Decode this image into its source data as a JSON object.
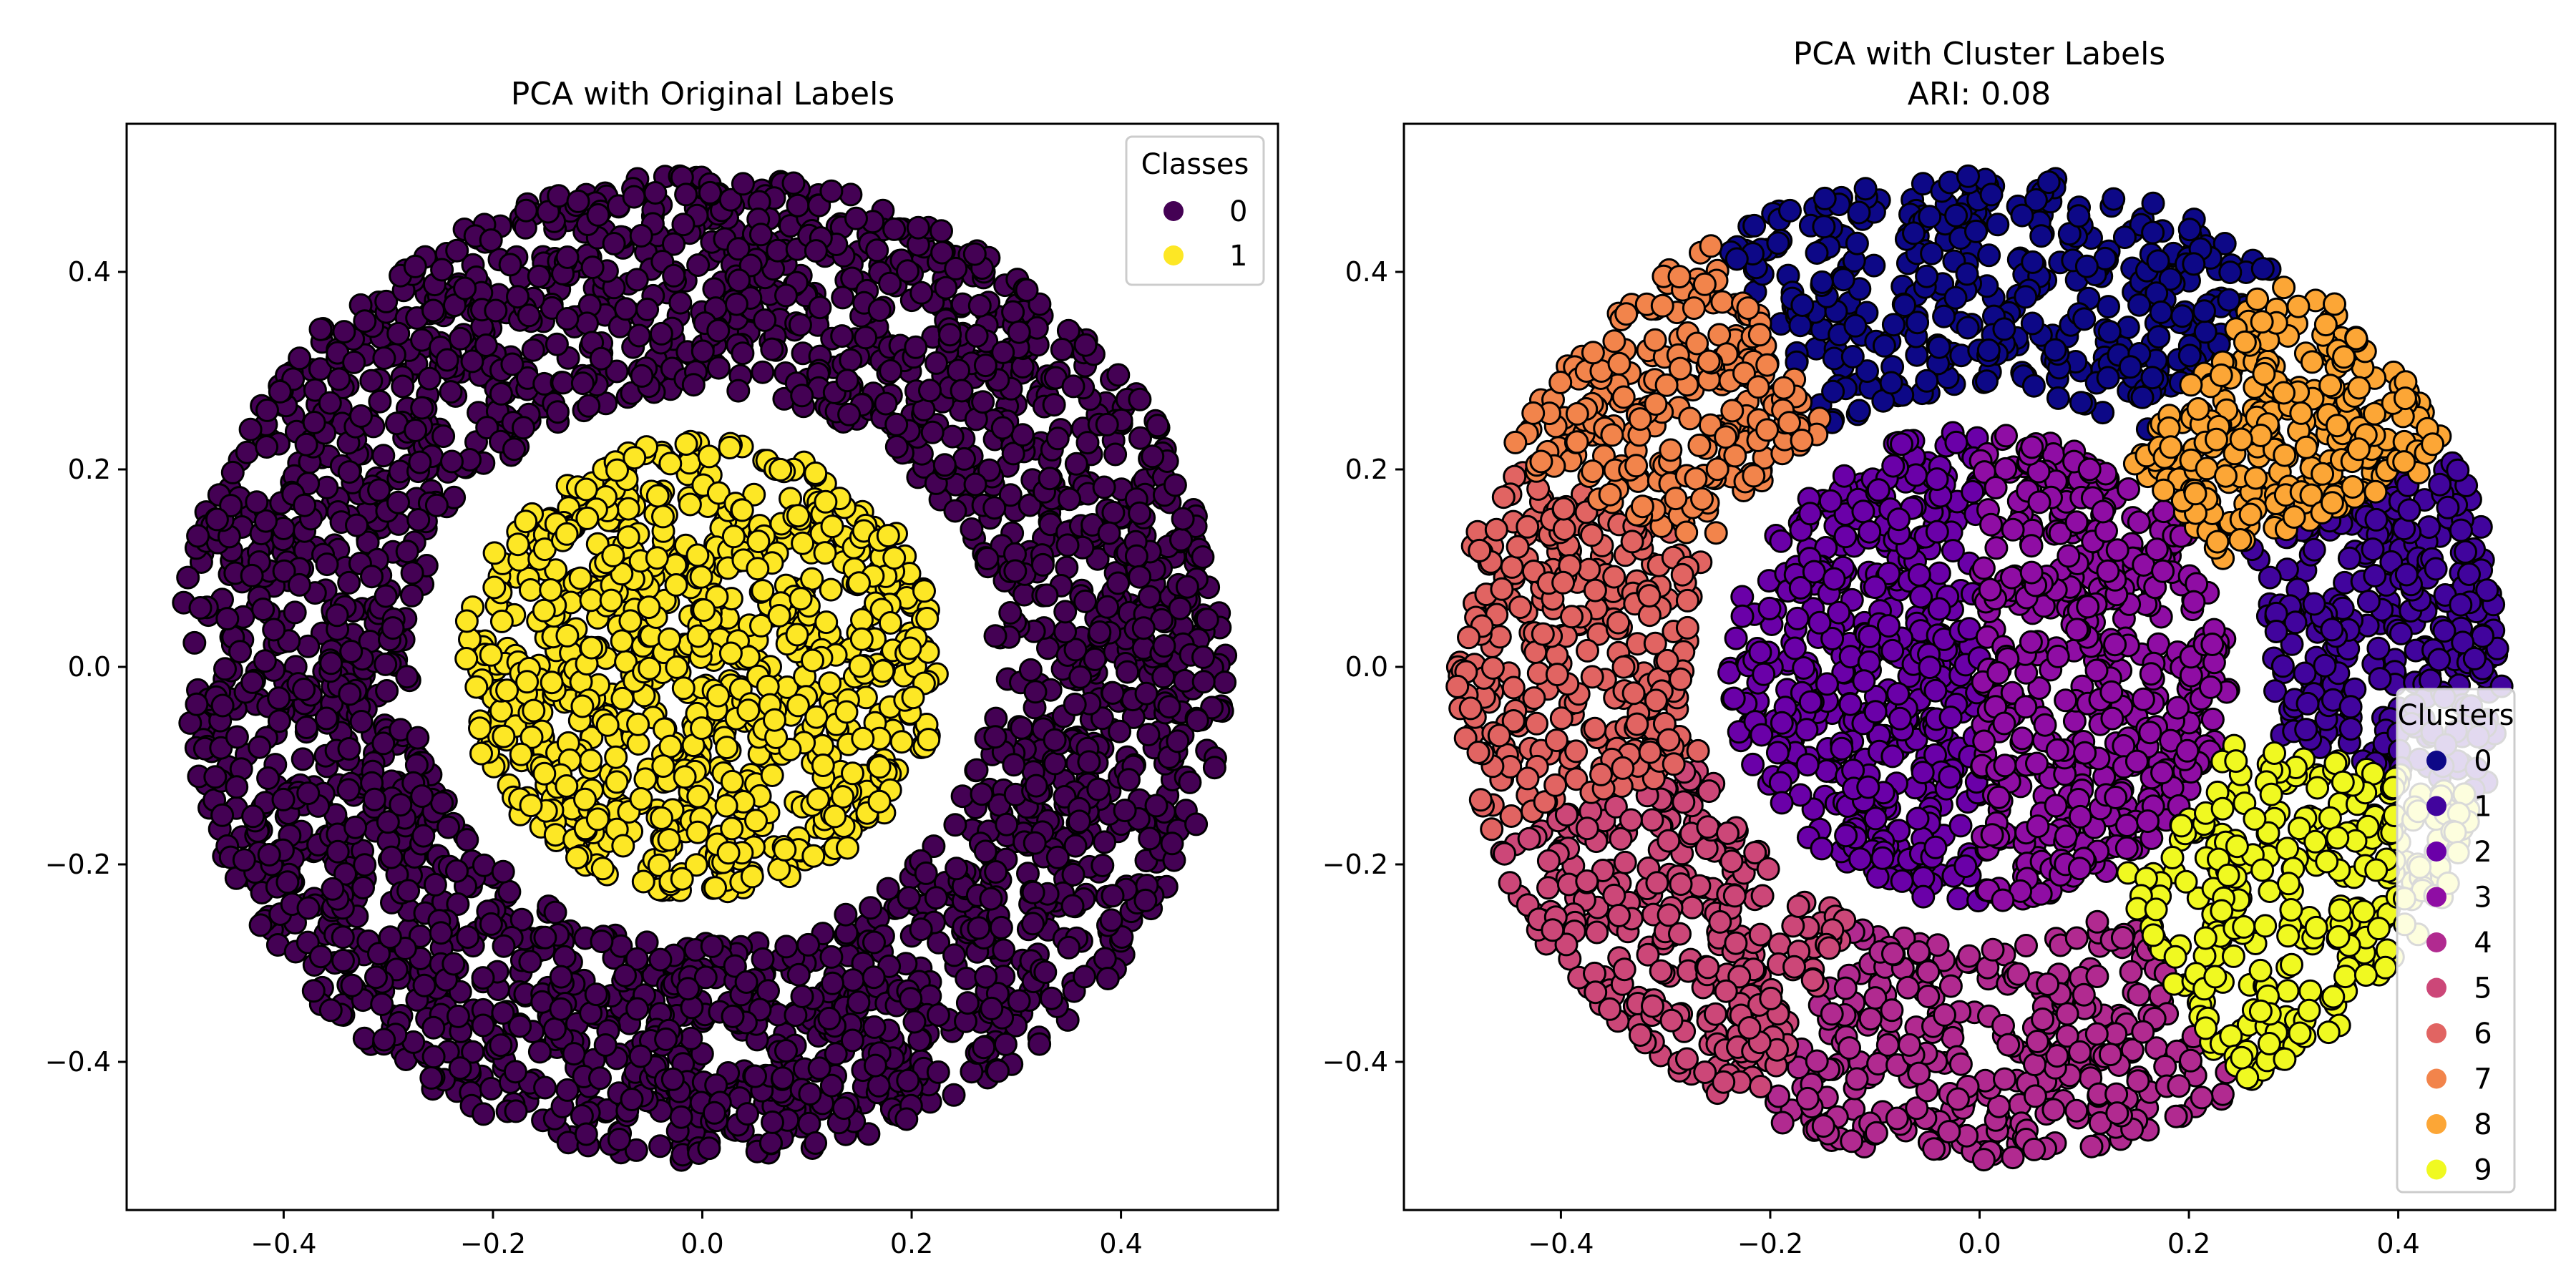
{
  "chart_data": [
    {
      "type": "scatter",
      "title": "PCA with Original Labels",
      "subtitle": "",
      "xlabel": "",
      "ylabel": "",
      "xlim": [
        -0.55,
        0.55
      ],
      "ylim": [
        -0.55,
        0.55
      ],
      "xticks": [
        -0.4,
        -0.2,
        0.0,
        0.2,
        0.4
      ],
      "yticks": [
        -0.4,
        -0.2,
        0.0,
        0.2,
        0.4
      ],
      "xtick_labels": [
        "−0.4",
        "−0.2",
        "0.0",
        "0.2",
        "0.4"
      ],
      "ytick_labels": [
        "−0.4",
        "−0.2",
        "0.0",
        "0.2",
        "0.4"
      ],
      "grid": false,
      "legend": {
        "title": "Classes",
        "position": "top-right"
      },
      "series": [
        {
          "name": "0",
          "color": "#440154",
          "region": "ring",
          "r_inner": 0.28,
          "r_outer": 0.5,
          "n_points": 2600
        },
        {
          "name": "1",
          "color": "#fde725",
          "region": "disk",
          "r_inner": 0.0,
          "r_outer": 0.23,
          "n_points": 900
        }
      ]
    },
    {
      "type": "scatter",
      "title": "PCA with Cluster Labels",
      "subtitle": "ARI: 0.08",
      "xlabel": "",
      "ylabel": "",
      "xlim": [
        -0.55,
        0.55
      ],
      "ylim": [
        -0.55,
        0.55
      ],
      "xticks": [
        -0.4,
        -0.2,
        0.0,
        0.2,
        0.4
      ],
      "yticks": [
        -0.4,
        -0.2,
        0.0,
        0.2,
        0.4
      ],
      "xtick_labels": [
        "−0.4",
        "−0.2",
        "0.0",
        "0.2",
        "0.4"
      ],
      "ytick_labels": [
        "−0.4",
        "−0.2",
        "0.0",
        "0.2",
        "0.4"
      ],
      "grid": false,
      "legend": {
        "title": "Clusters",
        "position": "lower-right"
      },
      "series": [
        {
          "name": "0",
          "color": "#0d0887",
          "region": "sector",
          "angle_start": 55,
          "angle_end": 120,
          "r_inner": 0.28,
          "r_outer": 0.5,
          "n_points": 380
        },
        {
          "name": "1",
          "color": "#41049d",
          "region": "sector",
          "angle_start": -15,
          "angle_end": 25,
          "r_inner": 0.28,
          "r_outer": 0.5,
          "n_points": 300
        },
        {
          "name": "2",
          "color": "#6a00a8",
          "region": "half-disk",
          "angle_start": 90,
          "angle_end": 270,
          "r_inner": 0.0,
          "r_outer": 0.24,
          "n_points": 480
        },
        {
          "name": "3",
          "color": "#8f0da4",
          "region": "half-disk",
          "angle_start": -90,
          "angle_end": 90,
          "r_inner": 0.0,
          "r_outer": 0.24,
          "n_points": 480
        },
        {
          "name": "4",
          "color": "#b12a90",
          "region": "sector",
          "angle_start": 245,
          "angle_end": 300,
          "r_inner": 0.28,
          "r_outer": 0.5,
          "n_points": 320
        },
        {
          "name": "5",
          "color": "#cc4778",
          "region": "sector",
          "angle_start": 200,
          "angle_end": 245,
          "r_inner": 0.28,
          "r_outer": 0.5,
          "n_points": 300
        },
        {
          "name": "6",
          "color": "#e16462",
          "region": "sector",
          "angle_start": 155,
          "angle_end": 200,
          "r_inner": 0.28,
          "r_outer": 0.5,
          "n_points": 300
        },
        {
          "name": "7",
          "color": "#f2844b",
          "region": "sector",
          "angle_start": 120,
          "angle_end": 155,
          "r_inner": 0.28,
          "r_outer": 0.5,
          "n_points": 260
        },
        {
          "name": "8",
          "color": "#fca636",
          "region": "sector",
          "angle_start": 25,
          "angle_end": 55,
          "r_inner": 0.25,
          "r_outer": 0.5,
          "n_points": 300
        },
        {
          "name": "9",
          "color": "#f0f921",
          "region": "sector",
          "angle_start": 300,
          "angle_end": 345,
          "r_inner": 0.25,
          "r_outer": 0.5,
          "n_points": 320
        }
      ]
    }
  ]
}
